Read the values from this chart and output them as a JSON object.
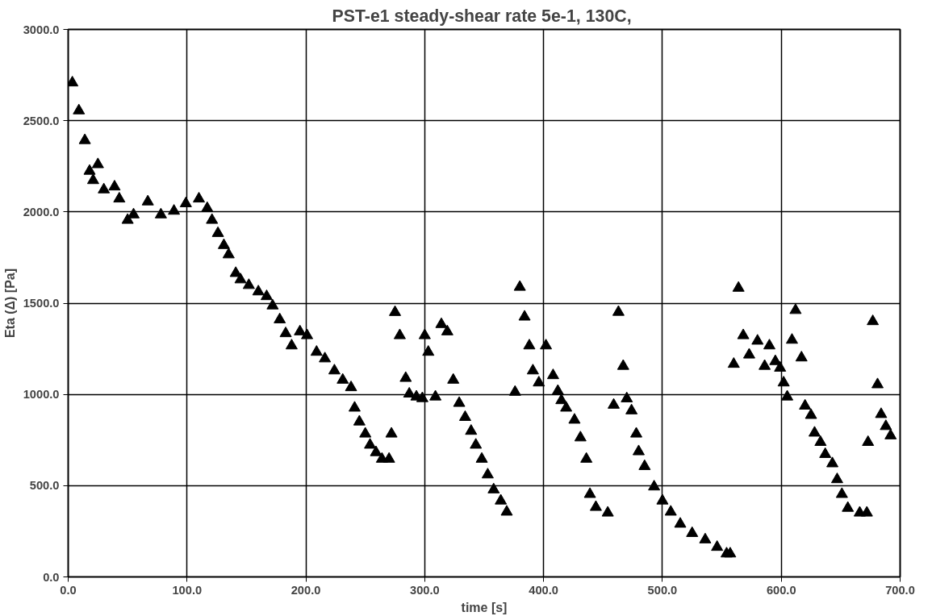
{
  "chart_data": {
    "type": "scatter",
    "title": "PST-e1 steady-shear rate 5e-1,  130C,",
    "xlabel": "time [s]",
    "ylabel": "Eta (Δ) [Pa]",
    "x": [
      3.5,
      9,
      14,
      18,
      21,
      25,
      30,
      39,
      43,
      50,
      55,
      67,
      78,
      89,
      99,
      110,
      117,
      121,
      126,
      131,
      135,
      141,
      145,
      152,
      160,
      167,
      172,
      178,
      183,
      188,
      195,
      201,
      209,
      216,
      224,
      231,
      238,
      241,
      245,
      250,
      254,
      259,
      264,
      270,
      272,
      275,
      279,
      284,
      287,
      293,
      298,
      300,
      303,
      309,
      314,
      319,
      324,
      329,
      334,
      339,
      343,
      348,
      353,
      358,
      364,
      369,
      376,
      380,
      384,
      388,
      391,
      396,
      402,
      408,
      412,
      415,
      419,
      426,
      431,
      436,
      439,
      444,
      454,
      459,
      463,
      467,
      470,
      474,
      478,
      480,
      485,
      493,
      500,
      507,
      515,
      525,
      536,
      546,
      554,
      557,
      560,
      564,
      568,
      573,
      580,
      586,
      590,
      595,
      599,
      602,
      605,
      609,
      612,
      617,
      620,
      625,
      628,
      633,
      637,
      643,
      647,
      651,
      656,
      666,
      672,
      673,
      677,
      681,
      684,
      688,
      692
    ],
    "series": [
      {
        "color": "#000000",
        "values": [
          2708,
          2555,
          2392,
          2224,
          2173,
          2260,
          2122,
          2138,
          2072,
          1955,
          1985,
          2056,
          1985,
          2005,
          2046,
          2072,
          2020,
          1955,
          1883,
          1817,
          1766,
          1664,
          1629,
          1598,
          1563,
          1537,
          1486,
          1410,
          1334,
          1267,
          1344,
          1323,
          1232,
          1196,
          1130,
          1079,
          1038,
          926,
          850,
          784,
          723,
          682,
          646,
          646,
          784,
          1450,
          1323,
          1089,
          1003,
          987,
          978,
          1323,
          1232,
          987,
          1384,
          1344,
          1079,
          952,
          875,
          799,
          723,
          646,
          560,
          478,
          417,
          356,
          1013,
          1588,
          1425,
          1267,
          1130,
          1064,
          1267,
          1104,
          1018,
          967,
          926,
          860,
          763,
          646,
          453,
          382,
          351,
          942,
          1451,
          1155,
          977,
          911,
          784,
          687,
          606,
          494,
          417,
          356,
          290,
          239,
          204,
          163,
          127,
          127,
          1166,
          1583,
          1323,
          1217,
          1293,
          1155,
          1267,
          1181,
          1145,
          1064,
          987,
          1298,
          1461,
          1201,
          937,
          886,
          789,
          738,
          672,
          621,
          534,
          453,
          377,
          351,
          351,
          738,
          1400,
          1054,
          891,
          825,
          774
        ]
      }
    ],
    "xlim": [
      0,
      700
    ],
    "ylim": [
      0,
      3000
    ],
    "xticks": [
      {
        "value": 0,
        "label": "0.0"
      },
      {
        "value": 100,
        "label": "100.0"
      },
      {
        "value": 200,
        "label": "200.0"
      },
      {
        "value": 300,
        "label": "300.0"
      },
      {
        "value": 400,
        "label": "400.0"
      },
      {
        "value": 500,
        "label": "500.0"
      },
      {
        "value": 600,
        "label": "600.0"
      },
      {
        "value": 700,
        "label": "700.0"
      }
    ],
    "yticks": [
      {
        "value": 0,
        "label": "0.0"
      },
      {
        "value": 500,
        "label": "500.0"
      },
      {
        "value": 1000,
        "label": "1000.0"
      },
      {
        "value": 1500,
        "label": "1500.0"
      },
      {
        "value": 2000,
        "label": "2000.0"
      },
      {
        "value": 2500,
        "label": "2500.0"
      },
      {
        "value": 3000,
        "label": "3000.0"
      }
    ],
    "grid": true,
    "marker": "triangle"
  }
}
